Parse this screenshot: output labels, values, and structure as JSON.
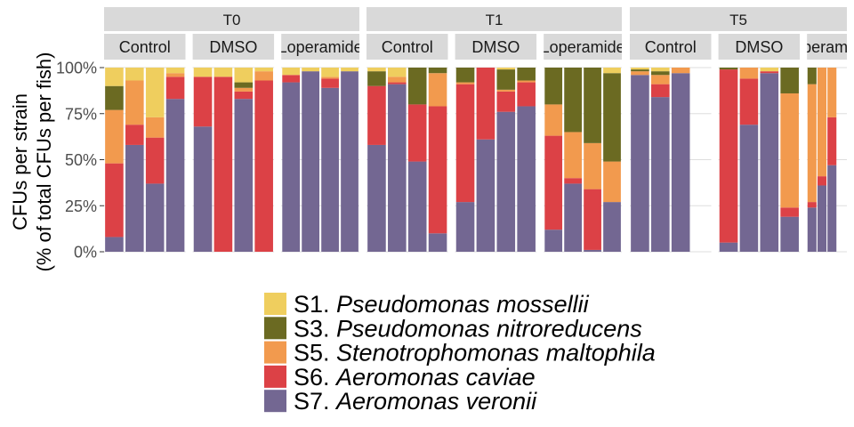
{
  "chart_data": {
    "type": "bar",
    "stacked": true,
    "ylabel_line1": "CFUs per strain",
    "ylabel_line2": "(% of total CFUs per fish)",
    "xlabel": "",
    "ylim": [
      0,
      100
    ],
    "yticks": [
      "0%",
      "25%",
      "50%",
      "75%",
      "100%"
    ],
    "grid": true,
    "legend_position": "bottom",
    "series": [
      {
        "name_prefix": "S1.",
        "name_species": "Pseudomonas mossellii",
        "color": "#EFCE5E"
      },
      {
        "name_prefix": "S3.",
        "name_species": "Pseudomonas nitroreducens",
        "color": "#6B6A22"
      },
      {
        "name_prefix": "S5.",
        "name_species": "Stenotrophomonas maltophila",
        "color": "#F29A4E"
      },
      {
        "name_prefix": "S6.",
        "name_species": "Aeromonas caviae",
        "color": "#DC4146"
      },
      {
        "name_prefix": "S7.",
        "name_species": "Aeromonas veronii",
        "color": "#736792"
      }
    ],
    "stack_order_bottom_to_top": [
      "S7.",
      "S6.",
      "S5.",
      "S3.",
      "S1."
    ],
    "timepoints": [
      {
        "label": "T0",
        "groups": [
          {
            "label": "Control",
            "bars": [
              [
                8,
                40,
                29,
                13,
                10
              ],
              [
                58,
                11,
                24,
                0,
                7
              ],
              [
                37,
                25,
                11,
                0,
                27
              ],
              [
                83,
                12,
                2,
                0,
                3
              ]
            ]
          },
          {
            "label": "DMSO",
            "bars": [
              [
                68,
                27,
                0,
                0,
                5
              ],
              [
                0,
                95,
                0,
                0,
                5
              ],
              [
                83,
                4,
                2,
                3,
                8
              ],
              [
                0,
                93,
                5,
                0,
                2
              ]
            ]
          },
          {
            "label": "Loperamide",
            "bars": [
              [
                92,
                4,
                0,
                0,
                4
              ],
              [
                98,
                0,
                0,
                0,
                2
              ],
              [
                89,
                5,
                1,
                0,
                5
              ],
              [
                98,
                0,
                0,
                0,
                2
              ]
            ]
          }
        ]
      },
      {
        "label": "T1",
        "groups": [
          {
            "label": "Control",
            "bars": [
              [
                58,
                32,
                0,
                8,
                2
              ],
              [
                91,
                1,
                3,
                0,
                5
              ],
              [
                49,
                31,
                0,
                20,
                0
              ],
              [
                10,
                69,
                18,
                3,
                0
              ]
            ]
          },
          {
            "label": "DMSO",
            "bars": [
              [
                27,
                64,
                1,
                8,
                0
              ],
              [
                61,
                39,
                0,
                0,
                0
              ],
              [
                76,
                11,
                1,
                11,
                1
              ],
              [
                79,
                13,
                1,
                7,
                0
              ]
            ]
          },
          {
            "label": "Loperamide",
            "bars": [
              [
                12,
                51,
                17,
                20,
                0
              ],
              [
                37,
                3,
                25,
                35,
                0
              ],
              [
                1,
                33,
                25,
                41,
                0
              ],
              [
                27,
                0,
                22,
                48,
                3
              ]
            ]
          }
        ]
      },
      {
        "label": "T5",
        "groups": [
          {
            "label": "Control",
            "bars": [
              [
                96,
                0,
                2,
                1,
                1
              ],
              [
                84,
                7,
                5,
                2,
                2
              ],
              [
                97,
                0,
                3,
                0,
                0
              ]
            ]
          },
          {
            "label": "DMSO",
            "bars": [
              [
                5,
                94,
                0,
                1,
                0
              ],
              [
                69,
                25,
                6,
                0,
                0
              ],
              [
                97,
                1,
                0,
                0,
                2
              ],
              [
                19,
                5,
                62,
                14,
                0
              ]
            ]
          },
          {
            "label": "Loperamide",
            "bars": [
              [
                24,
                3,
                64,
                9,
                0
              ],
              [
                36,
                5,
                59,
                0,
                0
              ],
              [
                47,
                26,
                27,
                0,
                0
              ]
            ]
          }
        ]
      }
    ]
  }
}
